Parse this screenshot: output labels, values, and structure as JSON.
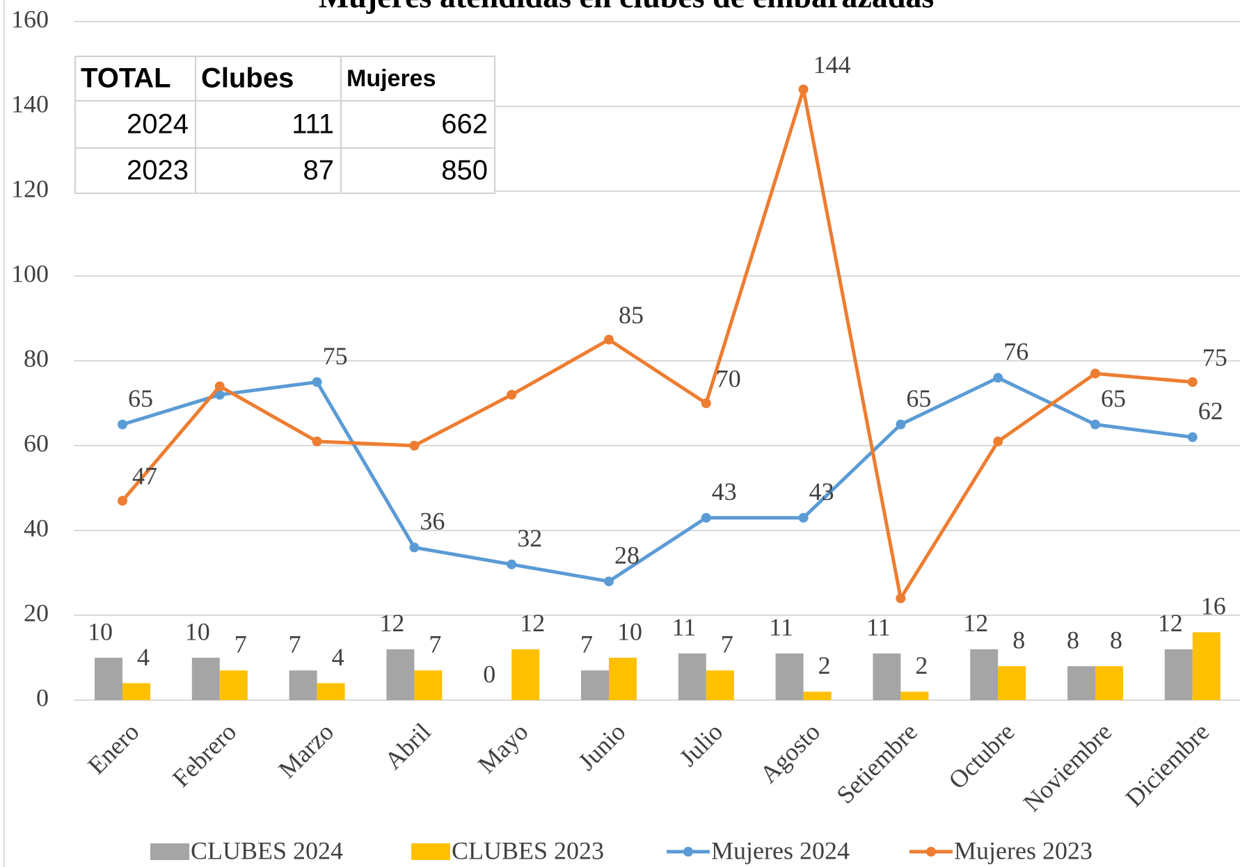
{
  "chart_data": {
    "type": "bar",
    "title": "Mujeres atendidas en clubes de embarazadas",
    "categories": [
      "Enero",
      "Febrero",
      "Marzo",
      "Abril",
      "Mayo",
      "Junio",
      "Julio",
      "Agosto",
      "Setiembre",
      "Octubre",
      "Noviembre",
      "Diciembre"
    ],
    "series": [
      {
        "name": "CLUBES 2024",
        "type": "bar",
        "color": "#a5a5a5",
        "values": [
          10,
          10,
          7,
          12,
          0,
          7,
          11,
          11,
          11,
          12,
          8,
          12
        ],
        "label_points": [
          0,
          1,
          2,
          3,
          4,
          5,
          6,
          7,
          8,
          9,
          10,
          11
        ]
      },
      {
        "name": "CLUBES 2023",
        "type": "bar",
        "color": "#ffc000",
        "values": [
          4,
          7,
          4,
          7,
          12,
          10,
          7,
          2,
          2,
          8,
          8,
          16
        ],
        "label_points": [
          0,
          1,
          2,
          3,
          4,
          5,
          6,
          7,
          8,
          9,
          10,
          11
        ]
      },
      {
        "name": "Mujeres 2024",
        "type": "line",
        "color": "#5b9bd5",
        "values": [
          65,
          72,
          75,
          36,
          32,
          28,
          43,
          43,
          65,
          76,
          65,
          62
        ],
        "label_points": [
          0,
          2,
          3,
          4,
          5,
          6,
          7,
          8,
          9,
          10,
          11
        ]
      },
      {
        "name": "Mujeres 2023",
        "type": "line",
        "color": "#ed7d31",
        "values": [
          47,
          74,
          61,
          60,
          72,
          85,
          70,
          144,
          24,
          61,
          77,
          75
        ],
        "label_points": [
          0,
          5,
          6,
          7,
          11
        ]
      }
    ],
    "ylim": [
      0,
      160
    ],
    "yticks": [
      0,
      20,
      40,
      60,
      80,
      100,
      120,
      140,
      160
    ],
    "grid": true,
    "legend": "bottom",
    "table": {
      "header": [
        "TOTAL",
        "Clubes",
        "Mujeres"
      ],
      "rows": [
        [
          2024,
          111,
          662
        ],
        [
          2023,
          87,
          850
        ]
      ]
    }
  }
}
